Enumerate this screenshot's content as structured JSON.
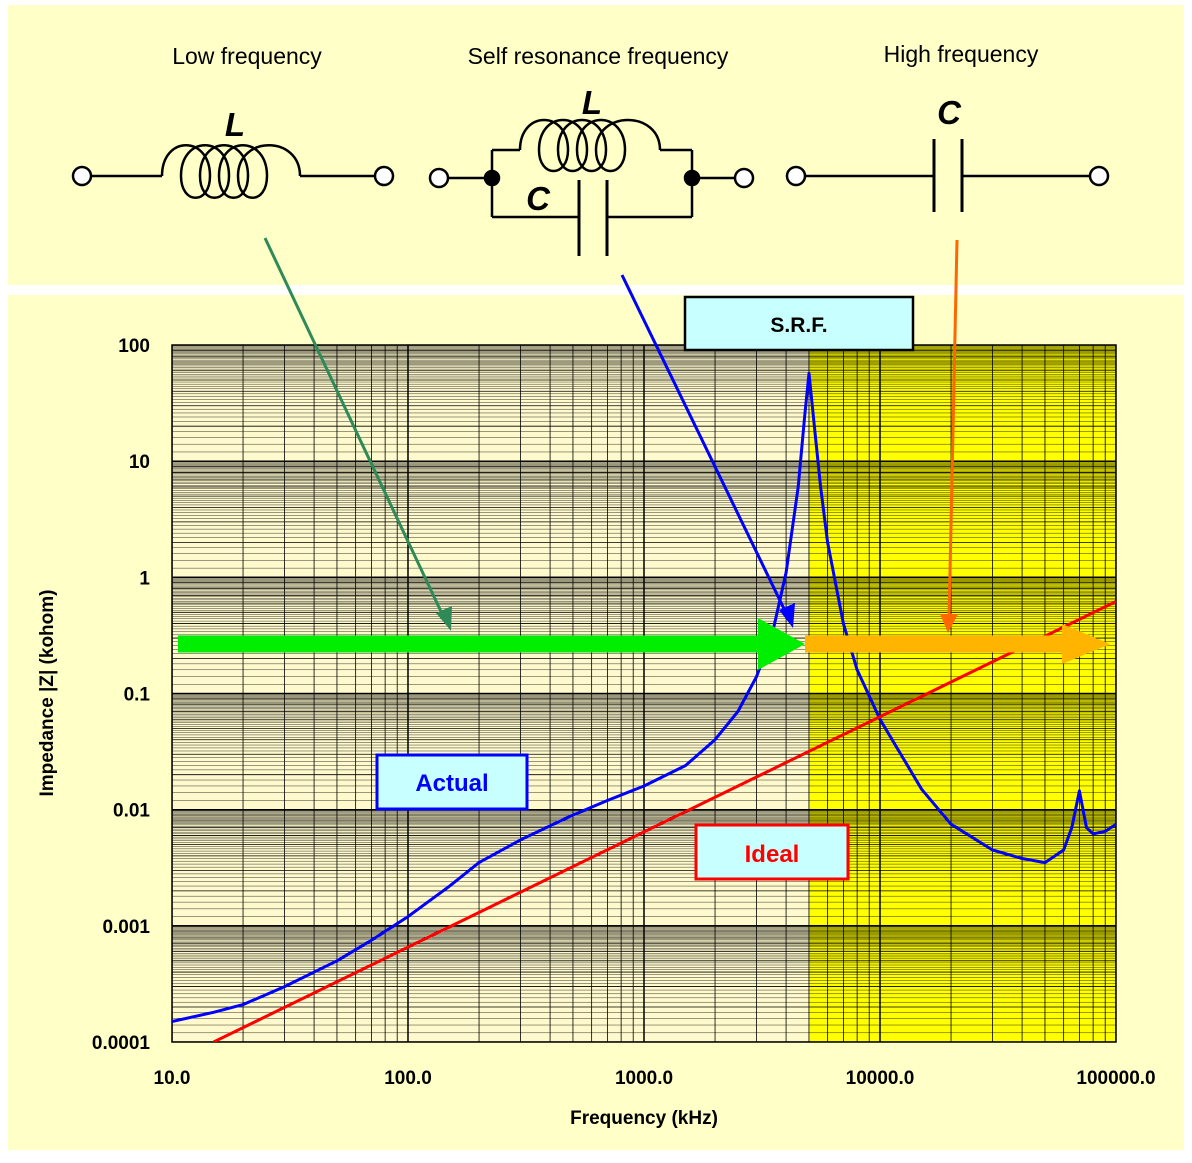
{
  "colors": {
    "panel_bg": "#ffffc8",
    "plot_bg": "#fffacd",
    "highlight": "#ffff00",
    "grid": "#000000",
    "actual": "#0000ff",
    "ideal": "#ff0000",
    "label_box": "#c8ffff",
    "arrow_green": "#00ee00",
    "arrow_orange": "#ffb400",
    "pointer_low": "#2e8b57",
    "pointer_srf": "#0000ff",
    "pointer_high": "#ff6600"
  },
  "circuits": {
    "low": {
      "title": "Low frequency",
      "l_label": "L"
    },
    "srf": {
      "title": "Self resonance frequency",
      "l_label": "L",
      "c_label": "C"
    },
    "high": {
      "title": "High frequency",
      "c_label": "C"
    }
  },
  "labels": {
    "srf": "S.R.F.",
    "actual": "Actual",
    "ideal": "Ideal"
  },
  "chart_data": {
    "type": "line",
    "xlabel": "Frequency (kHz)",
    "ylabel": "Impedance |Z| (kohom)",
    "xscale": "log",
    "yscale": "log",
    "xlim": [
      10,
      100000
    ],
    "ylim": [
      0.0001,
      100
    ],
    "xticks": [
      10,
      100,
      1000,
      10000,
      100000
    ],
    "xtick_labels": [
      "10.0",
      "100.0",
      "1000.0",
      "10000.0",
      "100000.0"
    ],
    "yticks": [
      0.0001,
      0.001,
      0.01,
      0.1,
      1,
      10,
      100
    ],
    "ytick_labels": [
      "0.0001",
      "0.001",
      "0.01",
      "0.1",
      "1",
      "10",
      "100"
    ],
    "grid": true,
    "highlight_range_x": [
      5000,
      100000
    ],
    "srf_frequency": 5000,
    "series": [
      {
        "name": "Actual",
        "color": "#0000ff",
        "x": [
          10,
          15,
          20,
          30,
          50,
          70,
          100,
          150,
          200,
          300,
          500,
          700,
          1000,
          1500,
          2000,
          2500,
          3000,
          3500,
          4000,
          4500,
          4800,
          5000,
          5300,
          5600,
          6000,
          7000,
          8000,
          10000,
          15000,
          20000,
          30000,
          40000,
          50000,
          60000,
          65000,
          70000,
          75000,
          80000,
          90000,
          100000
        ],
        "y": [
          0.00015,
          0.00018,
          0.00021,
          0.0003,
          0.0005,
          0.00075,
          0.0012,
          0.0022,
          0.0035,
          0.0055,
          0.009,
          0.012,
          0.016,
          0.024,
          0.04,
          0.07,
          0.14,
          0.33,
          1.1,
          6,
          25,
          57,
          18,
          6,
          2,
          0.4,
          0.16,
          0.06,
          0.015,
          0.0075,
          0.0045,
          0.0038,
          0.0035,
          0.0045,
          0.007,
          0.0145,
          0.007,
          0.0062,
          0.0065,
          0.0075
        ]
      },
      {
        "name": "Ideal",
        "color": "#ff0000",
        "x": [
          15,
          100000
        ],
        "y": [
          0.0001,
          0.62
        ]
      }
    ]
  }
}
